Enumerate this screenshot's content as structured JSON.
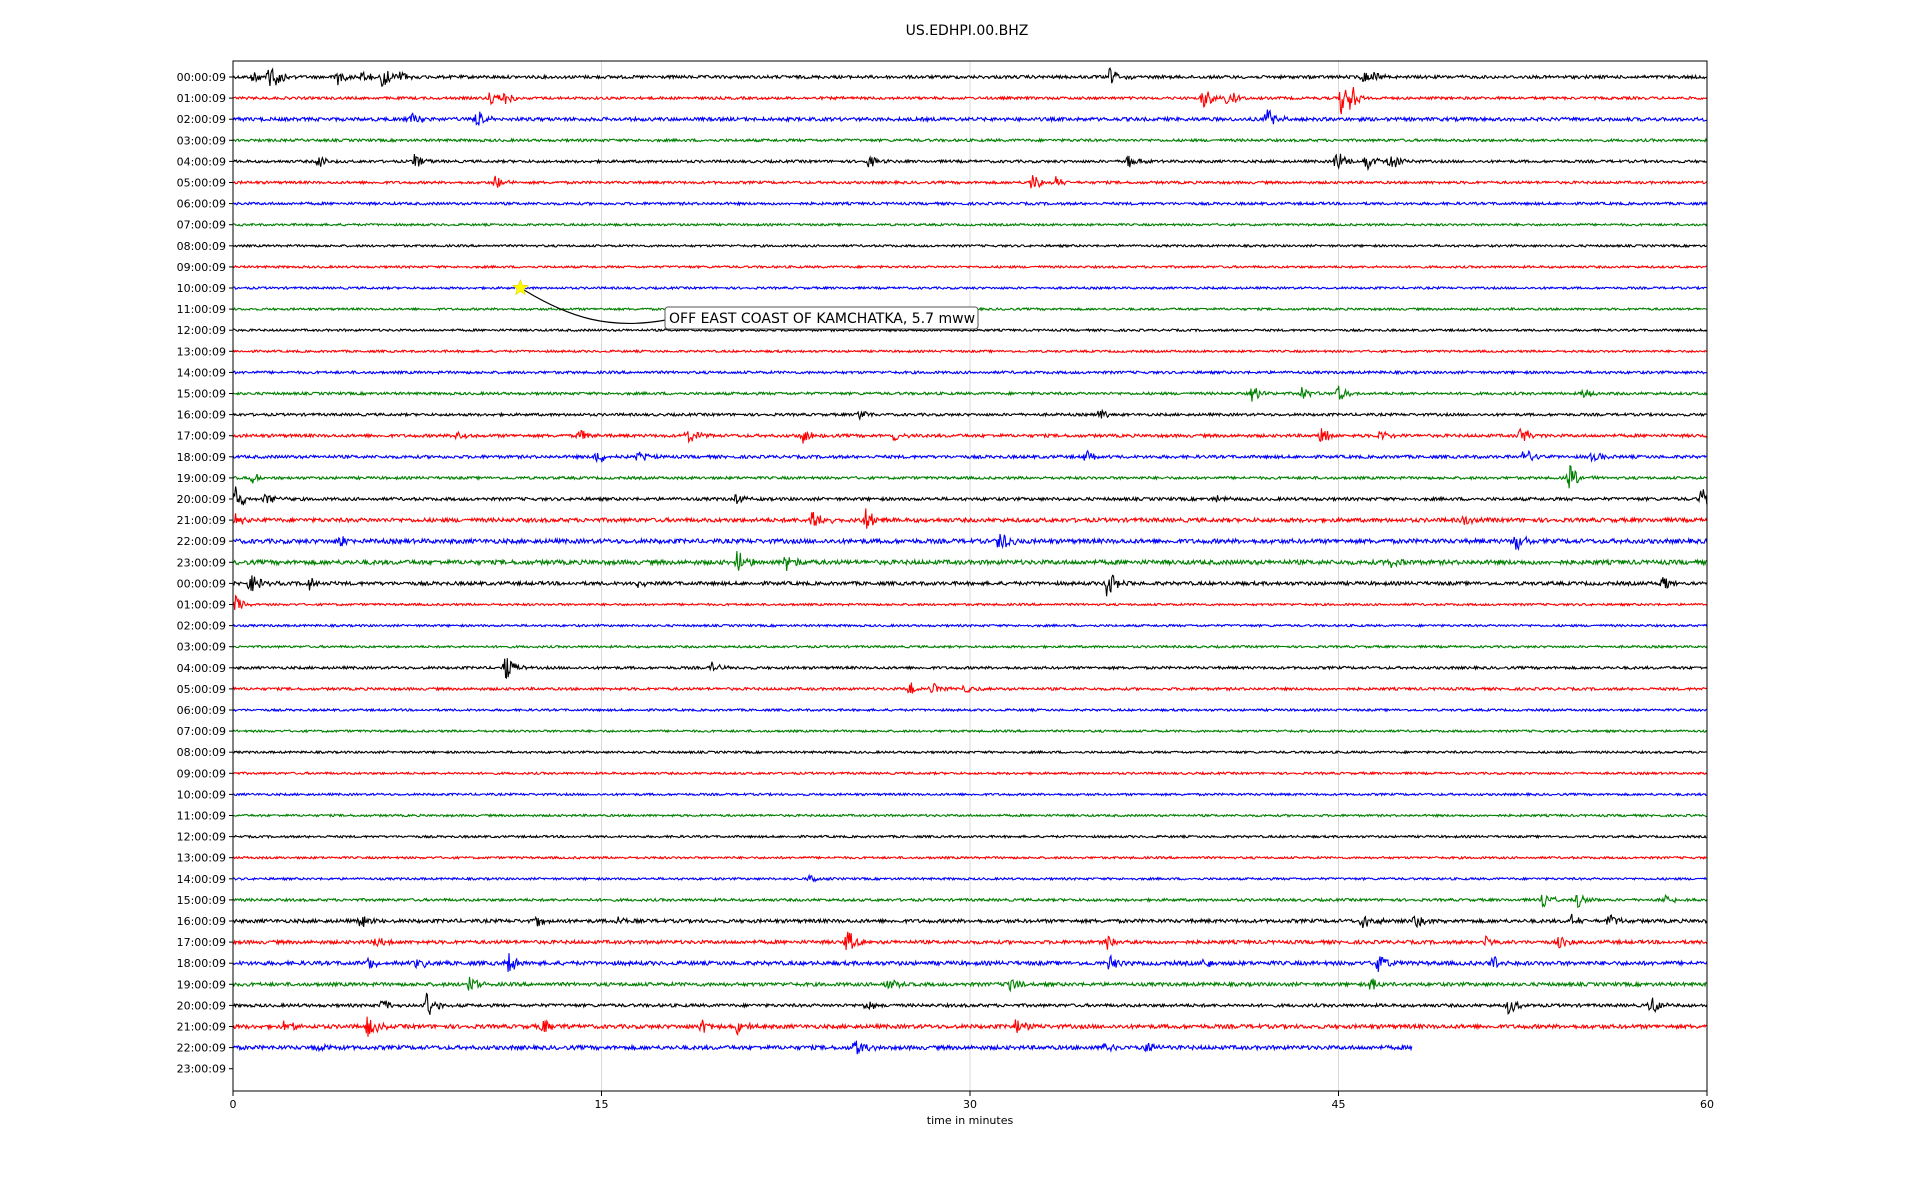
{
  "chart_data": {
    "type": "line",
    "title": "US.EDHPI.00.BHZ",
    "xlabel": "time in minutes",
    "ylabel": "",
    "xlim": [
      0,
      60
    ],
    "x_ticks": [
      0,
      15,
      30,
      45,
      60
    ],
    "x_grid": true,
    "trace_colors": [
      "#000000",
      "#ff0000",
      "#0000ff",
      "#008000"
    ],
    "row_labels": [
      "00:00:09",
      "01:00:09",
      "02:00:09",
      "03:00:09",
      "04:00:09",
      "05:00:09",
      "06:00:09",
      "07:00:09",
      "08:00:09",
      "09:00:09",
      "10:00:09",
      "11:00:09",
      "12:00:09",
      "13:00:09",
      "14:00:09",
      "15:00:09",
      "16:00:09",
      "17:00:09",
      "18:00:09",
      "19:00:09",
      "20:00:09",
      "21:00:09",
      "22:00:09",
      "23:00:09",
      "00:00:09",
      "01:00:09",
      "02:00:09",
      "03:00:09",
      "04:00:09",
      "05:00:09",
      "06:00:09",
      "07:00:09",
      "08:00:09",
      "09:00:09",
      "10:00:09",
      "11:00:09",
      "12:00:09",
      "13:00:09",
      "14:00:09",
      "15:00:09",
      "16:00:09",
      "17:00:09",
      "18:00:09",
      "19:00:09",
      "20:00:09",
      "21:00:09",
      "22:00:09",
      "23:00:09"
    ],
    "rows": [
      {
        "end": 60,
        "noise": 0.7,
        "events": [
          [
            0.8,
            0.6
          ],
          [
            1.5,
            1.8
          ],
          [
            4.2,
            0.9
          ],
          [
            5.3,
            0.8
          ],
          [
            6.1,
            1.1
          ],
          [
            6.8,
            0.5
          ],
          [
            35.7,
            1.0
          ],
          [
            46.0,
            0.8
          ],
          [
            46.5,
            0.6
          ]
        ]
      },
      {
        "end": 60,
        "noise": 0.6,
        "events": [
          [
            10.5,
            0.9
          ],
          [
            11.0,
            0.7
          ],
          [
            39.5,
            1.1
          ],
          [
            40.5,
            0.9
          ],
          [
            45.1,
            1.6
          ],
          [
            45.5,
            1.2
          ]
        ]
      },
      {
        "end": 60,
        "noise": 0.8,
        "events": [
          [
            7.2,
            0.8
          ],
          [
            9.9,
            1.0
          ],
          [
            42.1,
            1.0
          ]
        ]
      },
      {
        "end": 60,
        "noise": 0.6,
        "events": []
      },
      {
        "end": 60,
        "noise": 0.6,
        "events": [
          [
            3.5,
            0.6
          ],
          [
            7.4,
            0.8
          ],
          [
            25.9,
            0.6
          ],
          [
            36.4,
            0.8
          ],
          [
            44.9,
            1.2
          ],
          [
            46.1,
            1.0
          ],
          [
            47.1,
            0.9
          ]
        ]
      },
      {
        "end": 60,
        "noise": 0.6,
        "events": [
          [
            10.7,
            0.7
          ],
          [
            32.5,
            0.9
          ],
          [
            33.5,
            0.5
          ]
        ]
      },
      {
        "end": 60,
        "noise": 0.6,
        "events": []
      },
      {
        "end": 60,
        "noise": 0.5,
        "events": []
      },
      {
        "end": 60,
        "noise": 0.5,
        "events": []
      },
      {
        "end": 60,
        "noise": 0.5,
        "events": []
      },
      {
        "end": 60,
        "noise": 0.5,
        "events": []
      },
      {
        "end": 60,
        "noise": 0.5,
        "events": []
      },
      {
        "end": 60,
        "noise": 0.5,
        "events": []
      },
      {
        "end": 60,
        "noise": 0.5,
        "events": []
      },
      {
        "end": 60,
        "noise": 0.6,
        "events": []
      },
      {
        "end": 60,
        "noise": 0.6,
        "events": [
          [
            41.5,
            0.8
          ],
          [
            43.5,
            0.7
          ],
          [
            45.0,
            0.9
          ],
          [
            55.0,
            0.6
          ]
        ]
      },
      {
        "end": 60,
        "noise": 0.6,
        "events": [
          [
            25.5,
            0.6
          ],
          [
            35.3,
            0.6
          ]
        ]
      },
      {
        "end": 60,
        "noise": 0.7,
        "events": [
          [
            9.1,
            0.6
          ],
          [
            14.1,
            0.7
          ],
          [
            18.5,
            0.9
          ],
          [
            23.2,
            0.8
          ],
          [
            26.9,
            0.6
          ],
          [
            44.3,
            0.8
          ],
          [
            46.7,
            0.6
          ],
          [
            52.4,
            1.0
          ]
        ]
      },
      {
        "end": 60,
        "noise": 0.7,
        "events": [
          [
            14.8,
            0.8
          ],
          [
            16.5,
            0.6
          ],
          [
            34.7,
            0.6
          ],
          [
            52.5,
            1.2
          ],
          [
            55.3,
            0.6
          ]
        ]
      },
      {
        "end": 60,
        "noise": 0.6,
        "events": [
          [
            0.8,
            0.5
          ],
          [
            54.4,
            1.3
          ]
        ]
      },
      {
        "end": 60,
        "noise": 0.7,
        "events": [
          [
            0.1,
            1.4
          ],
          [
            1.3,
            0.8
          ],
          [
            20.5,
            0.6
          ],
          [
            40.0,
            0.5
          ],
          [
            59.8,
            1.2
          ]
        ]
      },
      {
        "end": 60,
        "noise": 0.9,
        "events": [
          [
            0.1,
            0.6
          ],
          [
            23.6,
            1.5
          ],
          [
            25.8,
            1.3
          ],
          [
            50.0,
            0.6
          ]
        ]
      },
      {
        "end": 60,
        "noise": 1.0,
        "events": [
          [
            4.3,
            0.6
          ],
          [
            31.2,
            1.3
          ],
          [
            52.2,
            1.0
          ]
        ]
      },
      {
        "end": 60,
        "noise": 1.0,
        "events": [
          [
            20.5,
            1.2
          ],
          [
            22.5,
            1.0
          ],
          [
            47.0,
            0.6
          ]
        ]
      },
      {
        "end": 60,
        "noise": 0.8,
        "events": [
          [
            0.7,
            1.0
          ],
          [
            3.1,
            0.8
          ],
          [
            16.5,
            0.5
          ],
          [
            35.6,
            1.5
          ],
          [
            58.2,
            0.9
          ]
        ]
      },
      {
        "end": 60,
        "noise": 0.5,
        "events": [
          [
            0.1,
            0.8
          ]
        ]
      },
      {
        "end": 60,
        "noise": 0.5,
        "events": []
      },
      {
        "end": 60,
        "noise": 0.5,
        "events": []
      },
      {
        "end": 60,
        "noise": 0.6,
        "events": [
          [
            11.1,
            1.4
          ],
          [
            19.5,
            0.5
          ]
        ]
      },
      {
        "end": 60,
        "noise": 0.6,
        "events": [
          [
            27.5,
            0.8
          ],
          [
            28.5,
            0.7
          ],
          [
            29.8,
            0.6
          ]
        ]
      },
      {
        "end": 60,
        "noise": 0.5,
        "events": []
      },
      {
        "end": 60,
        "noise": 0.5,
        "events": []
      },
      {
        "end": 60,
        "noise": 0.5,
        "events": []
      },
      {
        "end": 60,
        "noise": 0.5,
        "events": []
      },
      {
        "end": 60,
        "noise": 0.5,
        "events": []
      },
      {
        "end": 60,
        "noise": 0.5,
        "events": []
      },
      {
        "end": 60,
        "noise": 0.5,
        "events": []
      },
      {
        "end": 60,
        "noise": 0.5,
        "events": []
      },
      {
        "end": 60,
        "noise": 0.5,
        "events": [
          [
            23.5,
            0.6
          ]
        ]
      },
      {
        "end": 60,
        "noise": 0.6,
        "events": [
          [
            53.3,
            1.0
          ],
          [
            54.7,
            0.8
          ],
          [
            58.3,
            0.5
          ]
        ]
      },
      {
        "end": 60,
        "noise": 0.8,
        "events": [
          [
            5.2,
            0.7
          ],
          [
            12.3,
            0.6
          ],
          [
            15.7,
            0.5
          ],
          [
            46.0,
            1.1
          ],
          [
            48.1,
            0.7
          ],
          [
            54.5,
            0.6
          ],
          [
            56.0,
            0.8
          ]
        ]
      },
      {
        "end": 60,
        "noise": 0.8,
        "events": [
          [
            5.8,
            0.7
          ],
          [
            25.0,
            1.2
          ],
          [
            35.6,
            0.8
          ],
          [
            51.0,
            0.6
          ],
          [
            54.0,
            0.7
          ]
        ]
      },
      {
        "end": 60,
        "noise": 0.9,
        "events": [
          [
            5.5,
            0.8
          ],
          [
            7.5,
            0.6
          ],
          [
            11.2,
            1.1
          ],
          [
            35.7,
            0.8
          ],
          [
            39.5,
            0.6
          ],
          [
            46.6,
            1.0
          ],
          [
            51.3,
            0.8
          ]
        ]
      },
      {
        "end": 60,
        "noise": 0.8,
        "events": [
          [
            9.6,
            1.0
          ],
          [
            26.6,
            0.9
          ],
          [
            31.6,
            0.8
          ],
          [
            46.3,
            0.7
          ]
        ]
      },
      {
        "end": 60,
        "noise": 0.7,
        "events": [
          [
            6.1,
            0.7
          ],
          [
            7.9,
            1.4
          ],
          [
            25.8,
            0.6
          ],
          [
            51.9,
            0.9
          ],
          [
            57.7,
            1.1
          ]
        ]
      },
      {
        "end": 60,
        "noise": 0.9,
        "events": [
          [
            2.1,
            0.7
          ],
          [
            5.5,
            1.1
          ],
          [
            12.6,
            0.9
          ],
          [
            19.1,
            1.0
          ],
          [
            20.5,
            0.8
          ],
          [
            31.9,
            0.8
          ]
        ]
      },
      {
        "end": 48,
        "noise": 0.9,
        "events": [
          [
            3.4,
            0.7
          ],
          [
            25.3,
            1.1
          ],
          [
            35.5,
            0.8
          ],
          [
            37.2,
            0.8
          ]
        ]
      },
      {
        "end": 0,
        "noise": 0,
        "events": []
      }
    ],
    "event_marker": {
      "row": 10,
      "x": 11.7,
      "color": "#ffff00"
    },
    "annotation": {
      "text": "OFF EAST COAST OF KAMCHATKA, 5.7 mww"
    }
  }
}
